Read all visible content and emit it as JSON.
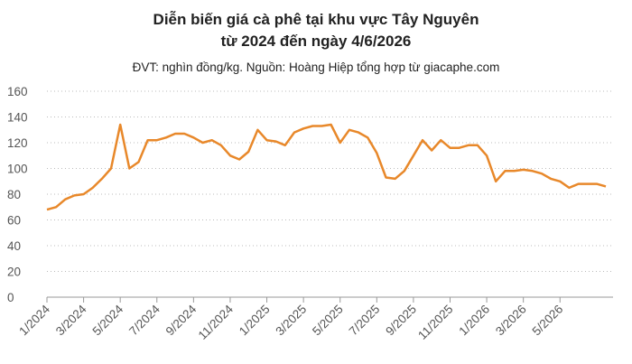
{
  "chart_data": {
    "type": "line",
    "title": [
      "Diễn biến giá cà phê tại khu vực Tây Nguyên",
      "từ 2024 đến ngày 4/6/2026"
    ],
    "subtitle": "ĐVT: nghìn đồng/kg. Nguồn: Hoàng Hiệp tổng hợp từ giacaphe.com",
    "categories": [
      "1/2024",
      null,
      null,
      null,
      "3/2024",
      null,
      null,
      null,
      "5/2024",
      null,
      null,
      null,
      "7/2024",
      null,
      null,
      null,
      "9/2024",
      null,
      null,
      null,
      "11/2024",
      null,
      null,
      null,
      "1/2025",
      null,
      null,
      null,
      "3/2025",
      null,
      null,
      null,
      "5/2025",
      null,
      null,
      null,
      "7/2025",
      null,
      null,
      null,
      "9/2025",
      null,
      null,
      null,
      "11/2025",
      null,
      null,
      null,
      "1/2026",
      null,
      null,
      null,
      "3/2026",
      null,
      null,
      null,
      "5/2026",
      null,
      null,
      null,
      null,
      null
    ],
    "series": [
      {
        "color": "#e8882a",
        "values": [
          68,
          70,
          76,
          79,
          80,
          85,
          92,
          100,
          134,
          100,
          105,
          122,
          122,
          124,
          127,
          127,
          124,
          120,
          122,
          118,
          110,
          107,
          113,
          130,
          122,
          121,
          118,
          128,
          131,
          133,
          133,
          134,
          120,
          130,
          128,
          124,
          112,
          93,
          92,
          98,
          110,
          122,
          114,
          122,
          116,
          116,
          118,
          118,
          110,
          90,
          98,
          98,
          99,
          98,
          96,
          92,
          90,
          85,
          88,
          88,
          88,
          86
        ]
      }
    ],
    "ylim": [
      0,
      160
    ],
    "yticks": [
      0,
      20,
      40,
      60,
      80,
      100,
      120,
      140,
      160
    ],
    "grid": true
  }
}
